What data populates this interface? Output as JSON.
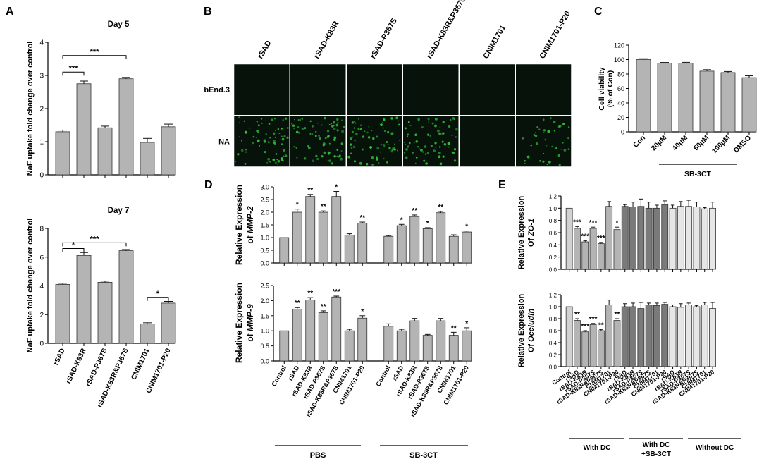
{
  "colors": {
    "bar": "#b4b4b4",
    "bar_dark": "#7a7a7a",
    "bar_light": "#e6e6e6",
    "bar_control": "#d2d2d2",
    "axis": "#000000",
    "image_bg": "#07120a",
    "image_fluor": "#34c83a"
  },
  "panels": {
    "A": {
      "letter": "A"
    },
    "B": {
      "letter": "B",
      "columns": [
        "rSAD",
        "rSAD-K83R",
        "rSAD-P367S",
        "rSAD-K83R&P367S",
        "CNIM1701",
        "CNIM1701-P20"
      ],
      "rows": [
        "bEnd.3",
        "NA"
      ]
    },
    "C": {
      "letter": "C",
      "group_label": "SB-3CT"
    },
    "D": {
      "letter": "D",
      "groups": [
        "PBS",
        "SB-3CT"
      ]
    },
    "E": {
      "letter": "E",
      "groups": [
        "With DC",
        "With DC +SB-3CT",
        "Without DC"
      ]
    }
  },
  "chart_data": [
    {
      "id": "A1",
      "type": "bar",
      "title": "Day 5",
      "ylabel": "NaF uptake fold change over control",
      "categories": [
        "rSAD",
        "rSAD-K83R",
        "rSAD-P367S",
        "rSAD-K83R&P367S",
        "CNIM1701",
        "CNIM1701-P20"
      ],
      "values": [
        1.3,
        2.75,
        1.42,
        2.9,
        0.98,
        1.45
      ],
      "errors": [
        0.05,
        0.08,
        0.05,
        0.04,
        0.12,
        0.08
      ],
      "ylim": [
        0,
        4
      ],
      "yticks": [
        0,
        1,
        2,
        3,
        4
      ],
      "show_xticklabels": false,
      "brackets": [
        {
          "from": 0,
          "to": 1,
          "level": 3.1,
          "label": "***"
        },
        {
          "from": 0,
          "to": 3,
          "level": 3.6,
          "label": "***"
        }
      ]
    },
    {
      "id": "A2",
      "type": "bar",
      "title": "Day 7",
      "ylabel": "NaF uptake fold change over control",
      "categories": [
        "rSAD",
        "rSAD-K83R",
        "rSAD-P367S",
        "rSAD-K83R&P367S",
        "CNIM1701",
        "CNIM1701-P20"
      ],
      "values": [
        4.1,
        6.12,
        4.25,
        6.45,
        1.35,
        2.8
      ],
      "errors": [
        0.08,
        0.2,
        0.08,
        0.08,
        0.08,
        0.12
      ],
      "ylim": [
        0,
        8
      ],
      "yticks": [
        0,
        2,
        4,
        6,
        8
      ],
      "show_xticklabels": true,
      "brackets": [
        {
          "from": 0,
          "to": 1,
          "level": 6.6,
          "label": "*"
        },
        {
          "from": 0,
          "to": 3,
          "level": 7.0,
          "label": "***"
        },
        {
          "from": 4,
          "to": 5,
          "level": 3.2,
          "label": "*"
        }
      ]
    },
    {
      "id": "C",
      "type": "bar",
      "ylabel": "Cell viability (% of Con)",
      "categories": [
        "Con",
        "20μM",
        "40μM",
        "50μM",
        "100μM",
        "DMSO"
      ],
      "values": [
        100,
        95,
        95,
        84,
        82,
        75
      ],
      "errors": [
        1.2,
        1.0,
        1.2,
        2.0,
        1.5,
        2.5
      ],
      "ylim": [
        0,
        120
      ],
      "yticks": [
        0,
        20,
        40,
        60,
        80,
        100,
        120
      ]
    },
    {
      "id": "D1",
      "type": "bar",
      "ylabel": "Relative Expression of MMP-2",
      "ylabel_prefix": "Relative Expression",
      "ylabel_line2_prefix": "of ",
      "ylabel_italic": "MMP-2",
      "categories": [
        "Control",
        "rSAD",
        "rSAD-K83R",
        "rSAD-P367S",
        "rSAD-K83R&P367S",
        "CNIM1701",
        "CNIM1701-P20",
        "Control",
        "rSAD",
        "rSAD-K83R",
        "rSAD-P367S",
        "rSAD-K83R&P367S",
        "CNIM1701",
        "CNIM1701-P20"
      ],
      "values": [
        1.0,
        2.0,
        2.62,
        2.0,
        2.62,
        1.1,
        1.57,
        1.05,
        1.47,
        1.83,
        1.35,
        1.98,
        1.05,
        1.22
      ],
      "errors": [
        0,
        0.12,
        0.08,
        0.05,
        0.2,
        0.05,
        0.04,
        0.03,
        0.05,
        0.06,
        0.04,
        0.05,
        0.06,
        0.04
      ],
      "marks": [
        "",
        "*",
        "**",
        "**",
        "*",
        "",
        "**",
        "",
        "*",
        "**",
        "*",
        "**",
        "",
        "*"
      ],
      "ylim": [
        0,
        3.0
      ],
      "yticks": [
        0.0,
        0.5,
        1.0,
        1.5,
        2.0,
        2.5,
        3.0
      ],
      "show_xticklabels": false
    },
    {
      "id": "D2",
      "type": "bar",
      "ylabel": "Relative Expression of MMP-9",
      "ylabel_prefix": "Relative Expression",
      "ylabel_line2_prefix": "of ",
      "ylabel_italic": "MMP-9",
      "categories": [
        "Control",
        "rSAD",
        "rSAD-K83R",
        "rSAD-P367S",
        "rSAD-K83R&P367S",
        "CNIM1701",
        "CNIM1701-P20",
        "Control",
        "rSAD",
        "rSAD-K83R",
        "rSAD-P367S",
        "rSAD-K83R&P367S",
        "CNIM1701",
        "CNIM1701-P20"
      ],
      "values": [
        1.0,
        1.72,
        2.02,
        1.6,
        2.12,
        1.0,
        1.42,
        1.15,
        1.0,
        1.33,
        0.85,
        1.33,
        0.85,
        1.0
      ],
      "errors": [
        0,
        0.05,
        0.08,
        0.06,
        0.03,
        0.05,
        0.08,
        0.08,
        0.05,
        0.08,
        0.03,
        0.08,
        0.1,
        0.1
      ],
      "marks": [
        "",
        "**",
        "**",
        "**",
        "***",
        "",
        "*",
        "",
        "",
        "",
        "",
        "",
        "**",
        "*"
      ],
      "ylim": [
        0,
        2.5
      ],
      "yticks": [
        0.0,
        0.5,
        1.0,
        1.5,
        2.0,
        2.5
      ],
      "show_xticklabels": true
    },
    {
      "id": "E1",
      "type": "bar",
      "ylabel": "Relative Expression Of ZO-1",
      "ylabel_prefix": "Relative Expression",
      "ylabel_line2_prefix": "Of ",
      "ylabel_italic": "ZO-1",
      "categories": [
        "Control",
        "rSAD",
        "rSAD-K83R",
        "rSAD-P367S",
        "rSAD-K83R&P367S",
        "CNIM1701",
        "CNIM1701-P20",
        "rSAD",
        "rSAD-K83R",
        "rSAD-P367S",
        "rSAD-K83R&P367S",
        "CNIM1701",
        "CNIM1701-P20",
        "rSAD",
        "rSAD-K83R",
        "rSAD-P367S",
        "rSAD-K83R&P367S",
        "CNIM1701",
        "CNIM1701-P20"
      ],
      "values": [
        1.0,
        0.67,
        0.45,
        0.67,
        0.42,
        1.03,
        0.65,
        1.03,
        1.02,
        1.03,
        1.0,
        1.0,
        1.06,
        1.0,
        1.03,
        1.03,
        1.02,
        0.99,
        1.0
      ],
      "errors": [
        0,
        0.03,
        0.02,
        0.02,
        0.02,
        0.08,
        0.04,
        0.03,
        0.08,
        0.12,
        0.1,
        0.05,
        0.06,
        0.05,
        0.08,
        0.1,
        0.08,
        0.02,
        0.1
      ],
      "marks": [
        "",
        "***",
        "***",
        "***",
        "***",
        "",
        "*",
        "",
        "",
        "",
        "",
        "",
        "",
        "",
        "",
        "",
        "",
        "",
        ""
      ],
      "ylim": [
        0,
        1.2
      ],
      "yticks": [
        0.0,
        0.2,
        0.4,
        0.6,
        0.8,
        1.0,
        1.2
      ],
      "show_xticklabels": false
    },
    {
      "id": "E2",
      "type": "bar",
      "ylabel": "Relative Expression Of Occludin",
      "ylabel_prefix": "Relative Expression",
      "ylabel_line2_prefix": "Of ",
      "ylabel_italic": "Occludin",
      "categories": [
        "Control",
        "rSAD",
        "rSAD-K83R",
        "rSAD-P367S",
        "rSAD-K83R&P367S",
        "CNIM1701",
        "CNIM1701-P20",
        "rSAD",
        "rSAD-K83R",
        "rSAD-P367S",
        "rSAD-K83R&P367S",
        "CNIM1701",
        "CNIM1701-P20",
        "rSAD",
        "rSAD-K83R",
        "rSAD-P367S",
        "rSAD-K83R&P367S",
        "CNIM1701",
        "CNIM1701-P20"
      ],
      "values": [
        1.0,
        0.77,
        0.58,
        0.7,
        0.6,
        1.03,
        0.77,
        1.0,
        1.0,
        0.97,
        1.03,
        1.02,
        1.04,
        1.0,
        0.99,
        1.03,
        1.0,
        1.03,
        0.97
      ],
      "errors": [
        0,
        0.03,
        0.02,
        0.02,
        0.02,
        0.08,
        0.03,
        0.05,
        0.06,
        0.1,
        0.03,
        0.04,
        0.03,
        0.03,
        0.06,
        0.03,
        0.02,
        0.04,
        0.1
      ],
      "marks": [
        "",
        "**",
        "***",
        "***",
        "**",
        "",
        "**",
        "",
        "",
        "",
        "",
        "",
        "",
        "",
        "",
        "",
        "",
        "",
        ""
      ],
      "ylim": [
        0,
        1.2
      ],
      "yticks": [
        0.0,
        0.2,
        0.4,
        0.6,
        0.8,
        1.0,
        1.2
      ],
      "show_xticklabels": true
    }
  ]
}
